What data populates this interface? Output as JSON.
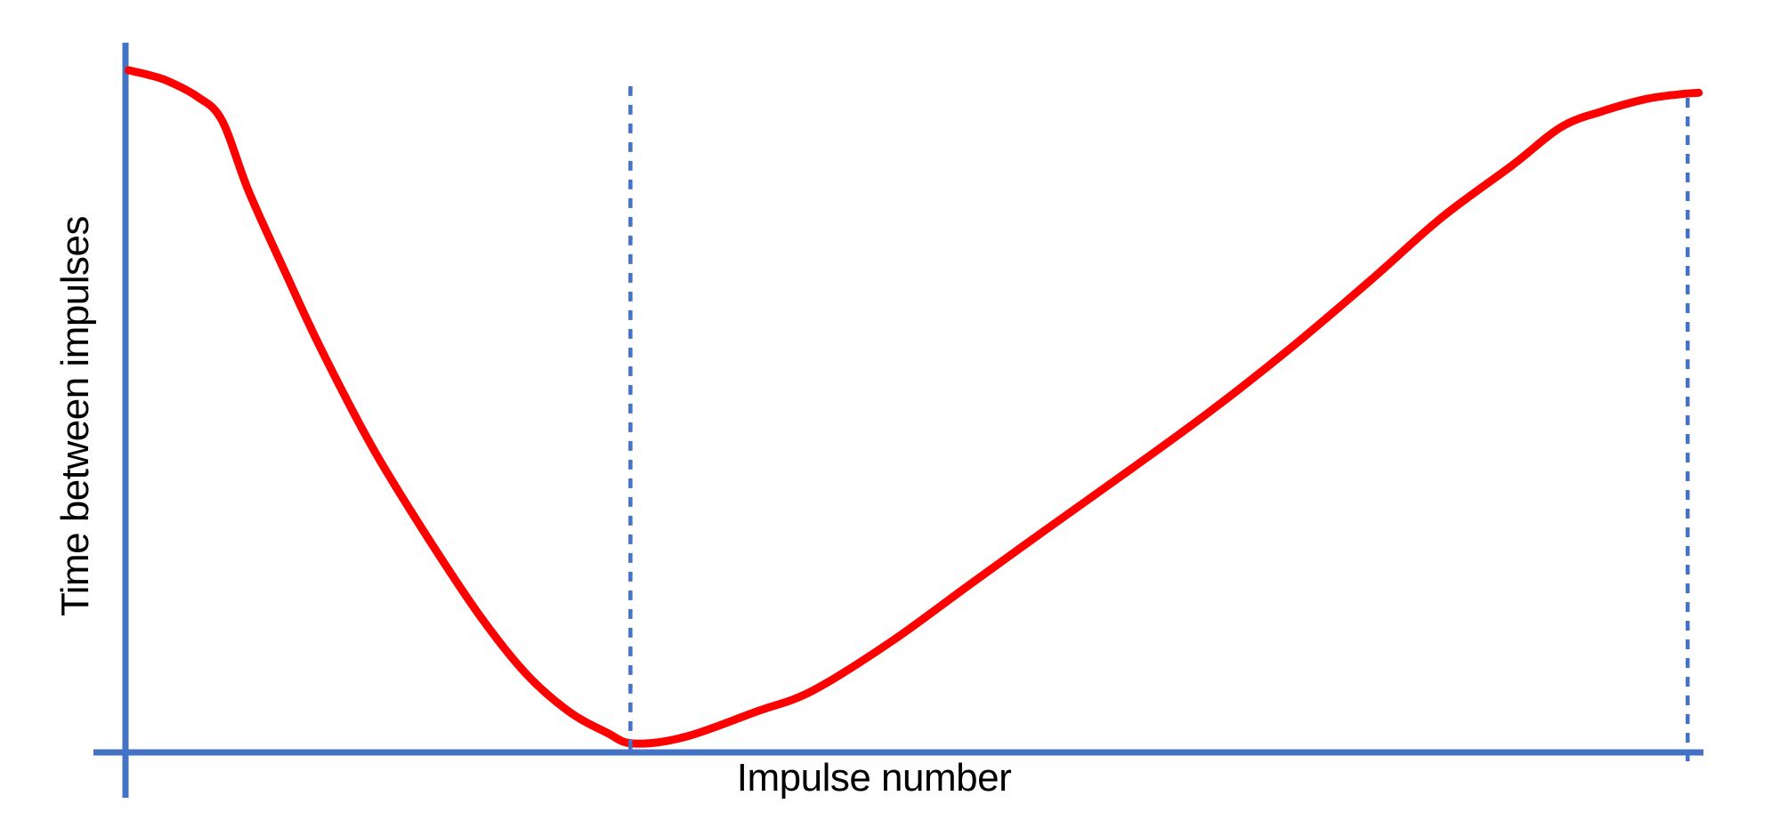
{
  "page": {
    "background": "#FFFFFF",
    "description_visible_elements": "single line chart with plain axes, no ticks, no legend"
  },
  "colors": {
    "axis": "#4472C4",
    "dashed_line": "#4472C4",
    "curve": "#FF0000",
    "text": "#000000",
    "background": "#FFFFFF"
  },
  "chart_data": {
    "type": "line",
    "title": "",
    "xlabel": "Impulse number",
    "ylabel": "Time between impulses",
    "axes": {
      "x": {
        "label": "Impulse number",
        "tick_labels": [],
        "range": [
          0,
          1
        ]
      },
      "y": {
        "label": "Time between impulses",
        "tick_labels": [],
        "range": [
          0,
          1
        ]
      }
    },
    "legend_visible": false,
    "grid": false,
    "series": [
      {
        "name": "time-between-impulses-curve",
        "color": "#FF0000",
        "points": [
          [
            0.002,
            1.0
          ],
          [
            0.015,
            0.993
          ],
          [
            0.027,
            0.984
          ],
          [
            0.045,
            0.962
          ],
          [
            0.061,
            0.927
          ],
          [
            0.078,
            0.823
          ],
          [
            0.101,
            0.705
          ],
          [
            0.124,
            0.591
          ],
          [
            0.157,
            0.445
          ],
          [
            0.191,
            0.317
          ],
          [
            0.225,
            0.199
          ],
          [
            0.254,
            0.115
          ],
          [
            0.281,
            0.06
          ],
          [
            0.305,
            0.029
          ],
          [
            0.322,
            0.013
          ],
          [
            0.355,
            0.023
          ],
          [
            0.4,
            0.06
          ],
          [
            0.435,
            0.09
          ],
          [
            0.485,
            0.162
          ],
          [
            0.535,
            0.246
          ],
          [
            0.586,
            0.331
          ],
          [
            0.637,
            0.415
          ],
          [
            0.688,
            0.501
          ],
          [
            0.738,
            0.592
          ],
          [
            0.789,
            0.692
          ],
          [
            0.834,
            0.784
          ],
          [
            0.879,
            0.861
          ],
          [
            0.91,
            0.917
          ],
          [
            0.936,
            0.94
          ],
          [
            0.964,
            0.958
          ],
          [
            0.986,
            0.965
          ],
          [
            0.997,
            0.967
          ]
        ]
      }
    ],
    "annotations": {
      "dashed_vlines": [
        {
          "x": 0.32,
          "y_from": 0.004,
          "y_to": 0.984
        },
        {
          "x": 0.99,
          "y_from": -0.013,
          "y_to": 0.964
        }
      ]
    }
  }
}
